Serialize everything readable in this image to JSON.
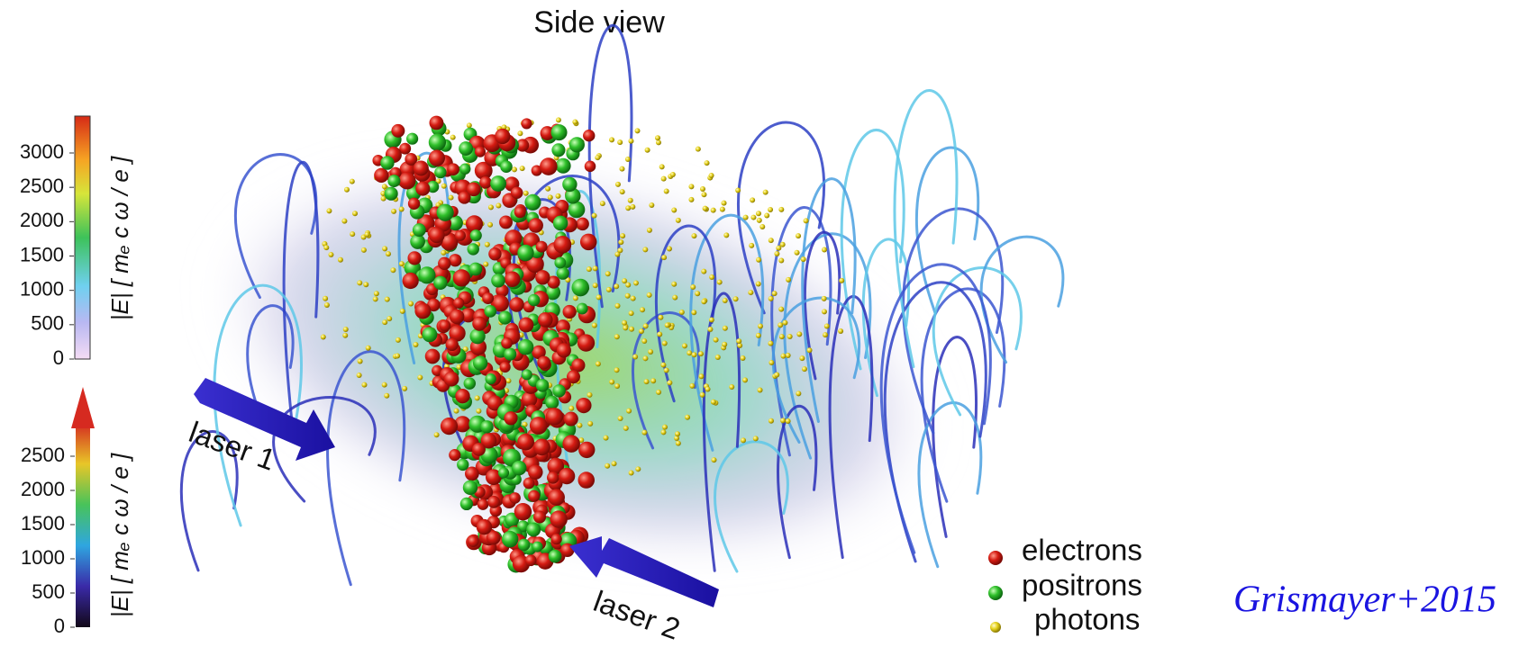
{
  "title": "Side view",
  "colorbar_top": {
    "label": "|E| [ mₑ c ω / e ]",
    "ticks": [
      0,
      500,
      1000,
      1500,
      2000,
      2500,
      3000
    ]
  },
  "colorbar_bottom": {
    "label": "|E| [ mₑ c ω / e ]",
    "ticks": [
      0,
      500,
      1000,
      1500,
      2000,
      2500
    ]
  },
  "annotations": {
    "laser_1": "laser 1",
    "laser_2": "laser 2"
  },
  "legend": [
    "electrons",
    "positrons",
    "photons"
  ],
  "credit": "Grismayer+2015"
}
